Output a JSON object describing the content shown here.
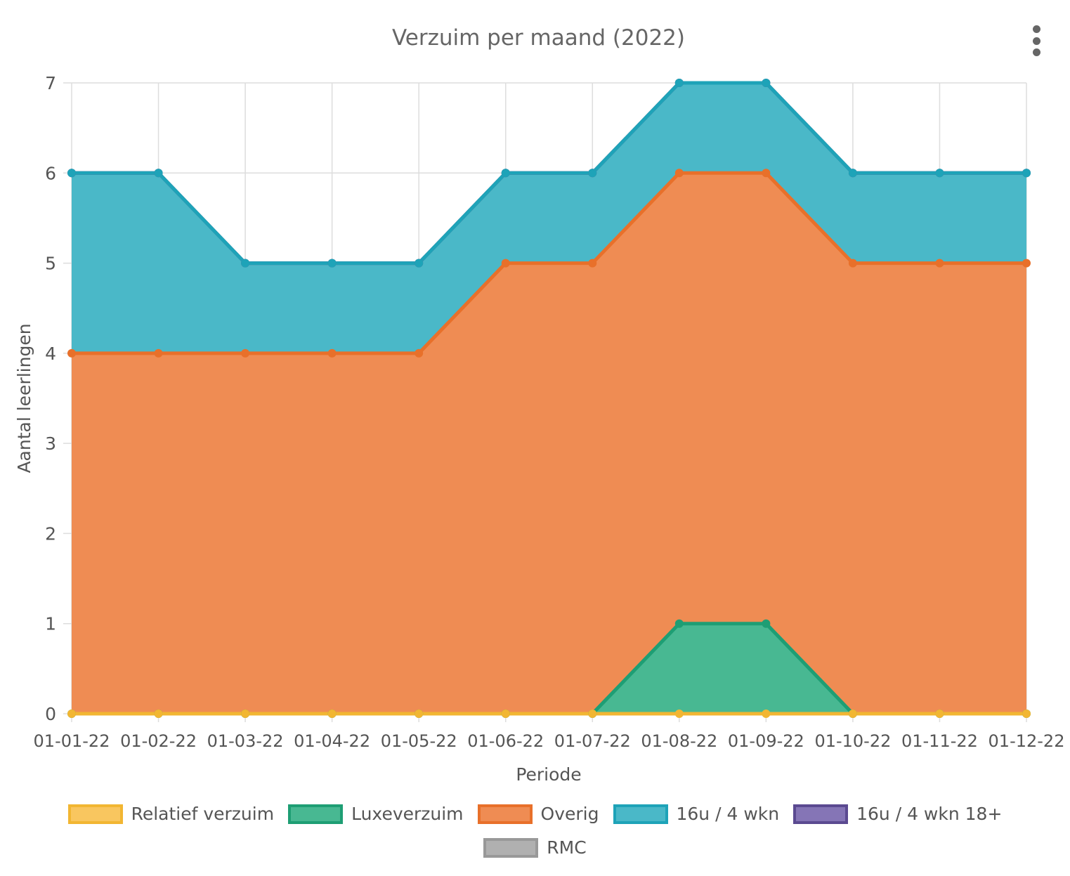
{
  "chart_data": {
    "type": "area",
    "stacked": true,
    "title": "Verzuim per maand (2022)",
    "xlabel": "Periode",
    "ylabel": "Aantal leerlingen",
    "ylim": [
      0,
      7
    ],
    "yticks": [
      "0",
      "1",
      "2",
      "3",
      "4",
      "5",
      "6",
      "7"
    ],
    "grid": true,
    "legend_position": "bottom",
    "categories": [
      "01-01-22",
      "01-02-22",
      "01-03-22",
      "01-04-22",
      "01-05-22",
      "01-06-22",
      "01-07-22",
      "01-08-22",
      "01-09-22",
      "01-10-22",
      "01-11-22",
      "01-12-22"
    ],
    "series": [
      {
        "name": "Relatief verzuim",
        "values": [
          0,
          0,
          0,
          0,
          0,
          0,
          0,
          0,
          0,
          0,
          0,
          0
        ],
        "line_color": "#f2b632",
        "fill_color": "#f9c65f"
      },
      {
        "name": "Luxeverzuim",
        "values": [
          0,
          0,
          0,
          0,
          0,
          0,
          0,
          1,
          1,
          0,
          0,
          0
        ],
        "line_color": "#1e9e74",
        "fill_color": "#48b892"
      },
      {
        "name": "Overig",
        "values": [
          4,
          4,
          4,
          4,
          4,
          5,
          5,
          5,
          5,
          5,
          5,
          5
        ],
        "line_color": "#e8702a",
        "fill_color": "#ef8c53"
      },
      {
        "name": "16u / 4 wkn",
        "values": [
          2,
          2,
          1,
          1,
          1,
          1,
          1,
          1,
          1,
          1,
          1,
          1
        ],
        "line_color": "#1ea3b8",
        "fill_color": "#4ab8c8"
      },
      {
        "name": "16u / 4 wkn 18+",
        "values": [
          0,
          0,
          0,
          0,
          0,
          0,
          0,
          0,
          0,
          0,
          0,
          0
        ],
        "line_color": "#5b4a91",
        "fill_color": "#8575b6"
      },
      {
        "name": "RMC",
        "values": [
          0,
          0,
          0,
          0,
          0,
          0,
          0,
          0,
          0,
          0,
          0,
          0
        ],
        "line_color": "#999999",
        "fill_color": "#b0b0b0"
      }
    ]
  },
  "menu": {
    "icon": "vertical-dots-icon"
  }
}
